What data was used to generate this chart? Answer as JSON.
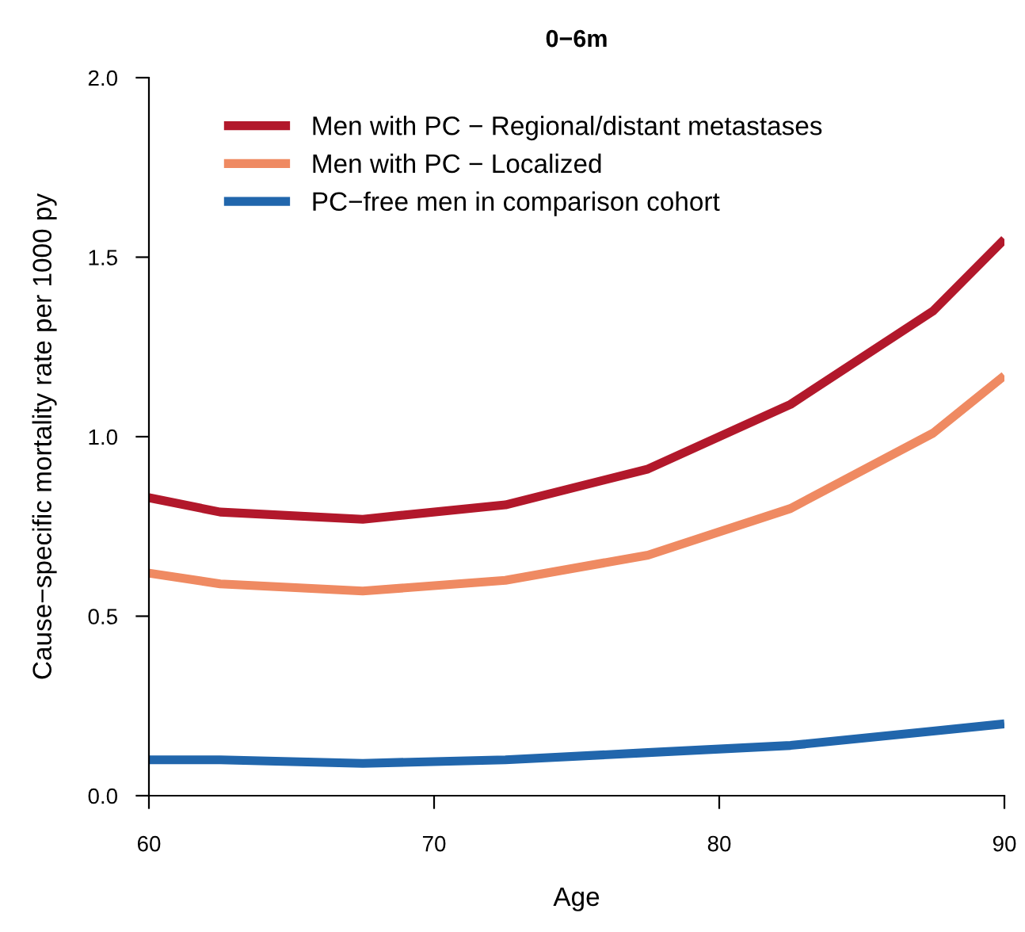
{
  "chart_data": {
    "type": "line",
    "title": "0−6m",
    "xlabel": "Age",
    "ylabel": "Cause−specific mortality rate per 1000 py",
    "x": [
      60,
      62.5,
      67.5,
      72.5,
      77.5,
      82.5,
      87.5,
      90
    ],
    "series": [
      {
        "name": "Men with PC − Regional/distant metastases",
        "color": "#b2182b",
        "values": [
          0.83,
          0.79,
          0.77,
          0.81,
          0.91,
          1.09,
          1.35,
          1.55
        ]
      },
      {
        "name": "Men with PC − Localized",
        "color": "#ef8a62",
        "values": [
          0.62,
          0.59,
          0.57,
          0.6,
          0.67,
          0.8,
          1.01,
          1.17
        ]
      },
      {
        "name": "PC−free men in comparison cohort",
        "color": "#2166ac",
        "values": [
          0.1,
          0.1,
          0.09,
          0.1,
          0.12,
          0.14,
          0.18,
          0.2
        ]
      }
    ],
    "xlim": [
      60,
      90
    ],
    "xticks": [
      60,
      70,
      80,
      90
    ],
    "ylim": [
      0,
      2.0
    ],
    "yticks": [
      {
        "value": 0,
        "label": "0.0"
      },
      {
        "value": 0.5,
        "label": "0.5"
      },
      {
        "value": 1,
        "label": "1.0"
      },
      {
        "value": 1.5,
        "label": "1.5"
      },
      {
        "value": 2,
        "label": "2.0"
      }
    ],
    "grid": false,
    "legend": "top left",
    "marker": "none",
    "line_style": "solid"
  }
}
